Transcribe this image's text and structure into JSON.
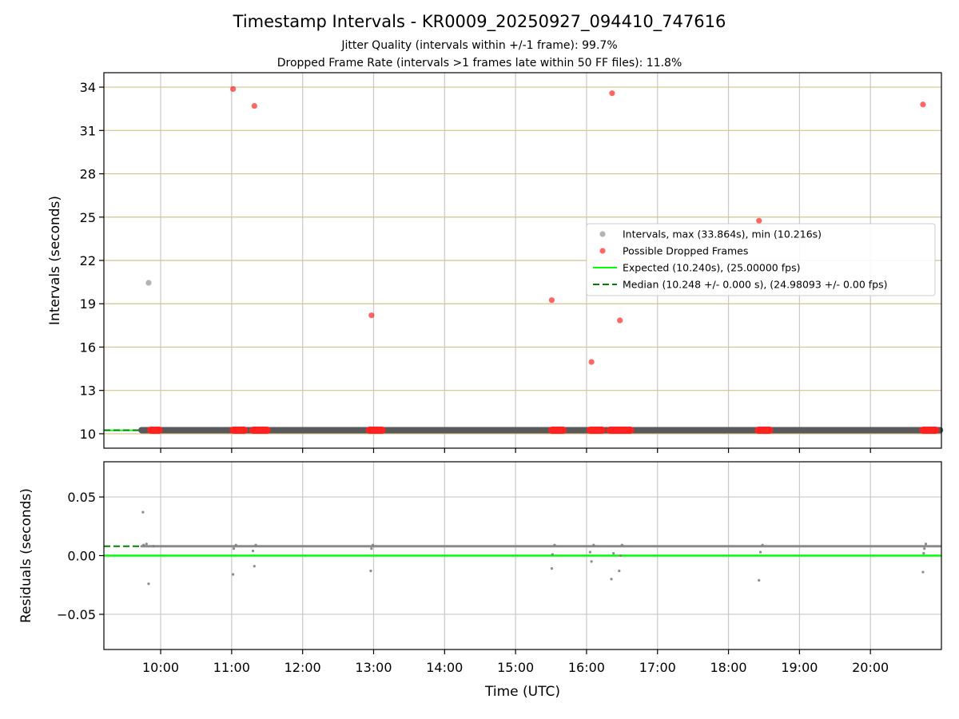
{
  "chart_data": [
    {
      "type": "scatter",
      "title": "Timestamp Intervals - KR0009_20250927_094410_747616",
      "subtitle_lines": [
        "Jitter Quality (intervals within +/-1 frame): 99.7%",
        "Dropped Frame Rate (intervals >1 frames late within 50 FF files): 11.8%"
      ],
      "xlabel": "",
      "ylabel": "Intervals (seconds)",
      "xlim_hours": [
        9.2,
        21.0
      ],
      "ylim": [
        9.0,
        35.0
      ],
      "yticks": [
        10,
        13,
        16,
        19,
        22,
        25,
        28,
        31,
        34
      ],
      "grid": true,
      "legend_position": "center-right",
      "series": [
        {
          "name": "Intervals, max (33.864s), min (10.216s)",
          "color": "#808080",
          "kind": "points",
          "points": [
            [
              9.83,
              20.45
            ]
          ],
          "dense_band": {
            "x_start_hours": 9.73,
            "x_end_hours": 20.98,
            "y": 10.248
          }
        },
        {
          "name": "Possible Dropped Frames",
          "color": "#ff0000",
          "kind": "points",
          "points": [
            [
              11.02,
              33.87
            ],
            [
              11.32,
              32.7
            ],
            [
              12.97,
              18.2
            ],
            [
              15.51,
              19.25
            ],
            [
              16.07,
              14.97
            ],
            [
              16.36,
              33.58
            ],
            [
              16.47,
              17.85
            ],
            [
              18.43,
              24.75
            ],
            [
              20.74,
              32.8
            ]
          ],
          "baseline_clusters": [
            [
              9.86,
              9.98
            ],
            [
              11.02,
              11.18
            ],
            [
              11.3,
              11.5
            ],
            [
              12.94,
              13.12
            ],
            [
              15.51,
              15.67
            ],
            [
              16.05,
              16.22
            ],
            [
              16.33,
              16.62
            ],
            [
              18.42,
              18.58
            ],
            [
              20.74,
              20.92
            ]
          ]
        },
        {
          "name": "Expected (10.240s), (25.00000 fps)",
          "color": "#00ff00",
          "kind": "hline",
          "y": 10.24
        },
        {
          "name": "Median (10.248 +/- 0.000 s), (24.98093 +/- 0.00 fps)",
          "color": "#008000",
          "kind": "hline_dashed",
          "y": 10.248
        }
      ]
    },
    {
      "type": "scatter",
      "title": "",
      "xlabel": "Time (UTC)",
      "ylabel": "Residuals (seconds)",
      "xlim_hours": [
        9.2,
        21.0
      ],
      "ylim": [
        -0.08,
        0.08
      ],
      "yticks": [
        0.05,
        0.0,
        -0.05
      ],
      "ytick_labels": [
        "0.05",
        "0.00",
        "−0.05"
      ],
      "xticks": [
        "10:00",
        "11:00",
        "12:00",
        "13:00",
        "14:00",
        "15:00",
        "16:00",
        "17:00",
        "18:00",
        "19:00",
        "20:00"
      ],
      "grid": true,
      "series": [
        {
          "name": "",
          "color": "#808080",
          "kind": "points",
          "points": [
            [
              9.75,
              0.037
            ],
            [
              9.83,
              -0.024
            ],
            [
              9.76,
              0.009
            ],
            [
              9.8,
              0.01
            ],
            [
              9.9,
              0.008
            ],
            [
              11.02,
              -0.016
            ],
            [
              11.03,
              0.006
            ],
            [
              11.06,
              0.009
            ],
            [
              11.3,
              0.004
            ],
            [
              11.32,
              -0.009
            ],
            [
              11.34,
              0.009
            ],
            [
              12.96,
              -0.013
            ],
            [
              12.97,
              0.006
            ],
            [
              12.99,
              0.009
            ],
            [
              15.51,
              -0.011
            ],
            [
              15.52,
              0.001
            ],
            [
              15.55,
              0.009
            ],
            [
              16.05,
              0.003
            ],
            [
              16.07,
              -0.005
            ],
            [
              16.1,
              0.009
            ],
            [
              16.35,
              -0.02
            ],
            [
              16.38,
              0.002
            ],
            [
              16.46,
              -0.013
            ],
            [
              16.48,
              0.0
            ],
            [
              16.5,
              0.009
            ],
            [
              18.43,
              -0.021
            ],
            [
              18.45,
              0.003
            ],
            [
              18.48,
              0.009
            ],
            [
              20.74,
              -0.014
            ],
            [
              20.75,
              0.002
            ],
            [
              20.76,
              0.006
            ],
            [
              20.78,
              0.01
            ]
          ],
          "dense_band": {
            "x_start_hours": 9.73,
            "x_end_hours": 20.98,
            "y": 0.008
          }
        },
        {
          "name": "Expected",
          "color": "#00ff00",
          "kind": "hline",
          "y": 0.0
        },
        {
          "name": "Median",
          "color": "#008000",
          "kind": "hline_dashed",
          "y": 0.008
        }
      ]
    }
  ]
}
